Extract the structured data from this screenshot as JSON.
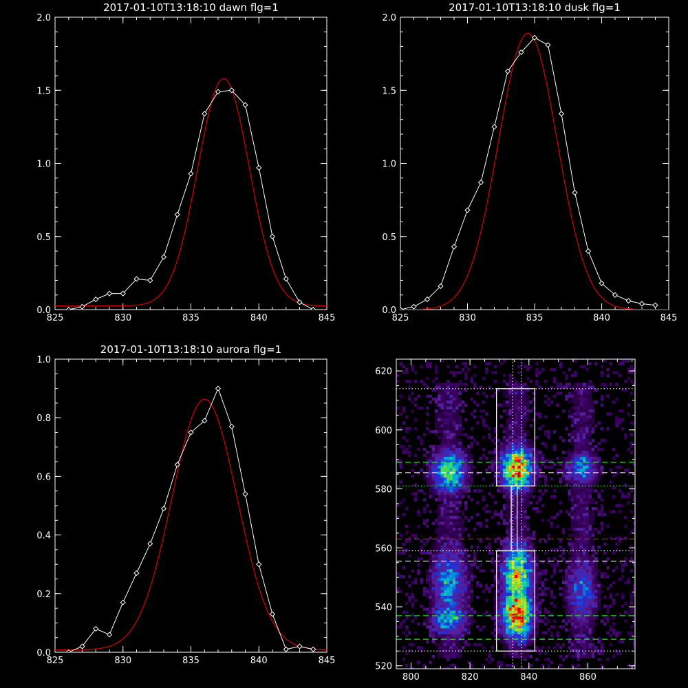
{
  "colors": {
    "background": "#000000",
    "axes": "#ffffff",
    "data_line": "#ffffff",
    "fit_line": "#cc0000",
    "guide_green": "#22dd22",
    "guide_white": "#ffffff",
    "guide_red": "#dd2222"
  },
  "chart_data": [
    {
      "type": "line",
      "title": "2017-01-10T13:18:10 dawn flg=1",
      "xlim": [
        825,
        845
      ],
      "ylim": [
        0,
        2.0
      ],
      "xticks": [
        "825",
        "830",
        "835",
        "840",
        "845"
      ],
      "yticks": [
        "0.0",
        "0.5",
        "1.0",
        "1.5",
        "2.0"
      ],
      "series": [
        {
          "style": "data",
          "x": [
            826,
            827,
            828,
            829,
            830,
            831,
            832,
            833,
            834,
            835,
            836,
            837,
            838,
            839,
            840,
            841,
            842,
            843,
            844
          ],
          "y": [
            0.0,
            0.02,
            0.07,
            0.11,
            0.11,
            0.21,
            0.2,
            0.36,
            0.65,
            0.93,
            1.34,
            1.49,
            1.5,
            1.4,
            0.97,
            0.5,
            0.21,
            0.05,
            0.0
          ]
        },
        {
          "style": "fit",
          "model": "gaussian",
          "amplitude": 1.555,
          "center": 837.4,
          "sigma": 1.9,
          "baseline": 0.025
        }
      ]
    },
    {
      "type": "line",
      "title": "2017-01-10T13:18:10 dusk flg=1",
      "xlim": [
        825,
        845
      ],
      "ylim": [
        0,
        2.0
      ],
      "xticks": [
        "825",
        "830",
        "835",
        "840",
        "845"
      ],
      "yticks": [
        "0.0",
        "0.5",
        "1.0",
        "1.5",
        "2.0"
      ],
      "series": [
        {
          "style": "data",
          "x": [
            825,
            826,
            827,
            828,
            829,
            830,
            831,
            832,
            833,
            834,
            835,
            836,
            837,
            838,
            839,
            840,
            841,
            842,
            843,
            844
          ],
          "y": [
            0.0,
            0.02,
            0.07,
            0.16,
            0.43,
            0.68,
            0.87,
            1.25,
            1.63,
            1.76,
            1.86,
            1.81,
            1.34,
            0.8,
            0.4,
            0.18,
            0.1,
            0.06,
            0.04,
            0.03
          ]
        },
        {
          "style": "fit",
          "model": "gaussian",
          "amplitude": 1.89,
          "center": 834.5,
          "sigma": 2.2,
          "baseline": 0.0
        }
      ]
    },
    {
      "type": "line",
      "title": "2017-01-10T13:18:10 aurora flg=1",
      "xlim": [
        825,
        845
      ],
      "ylim": [
        0,
        1.0
      ],
      "xticks": [
        "825",
        "830",
        "835",
        "840",
        "845"
      ],
      "yticks": [
        "0.0",
        "0.2",
        "0.4",
        "0.6",
        "0.8",
        "1.0"
      ],
      "series": [
        {
          "style": "data",
          "x": [
            826,
            827,
            828,
            829,
            830,
            831,
            832,
            833,
            834,
            835,
            836,
            837,
            838,
            839,
            840,
            841,
            842,
            843,
            844
          ],
          "y": [
            0.0,
            0.02,
            0.08,
            0.06,
            0.17,
            0.27,
            0.37,
            0.49,
            0.64,
            0.75,
            0.79,
            0.9,
            0.77,
            0.54,
            0.3,
            0.13,
            0.01,
            0.02,
            0.01
          ]
        },
        {
          "style": "fit",
          "model": "gaussian",
          "amplitude": 0.855,
          "center": 836.0,
          "sigma": 2.4,
          "baseline": 0.008
        }
      ]
    },
    {
      "type": "heatmap",
      "title": "",
      "xlim": [
        795,
        876
      ],
      "ylim": [
        519,
        624
      ],
      "xticks": [
        "800",
        "820",
        "840",
        "860"
      ],
      "yticks": [
        "520",
        "540",
        "560",
        "580",
        "600",
        "620"
      ],
      "colormap": [
        "#000000",
        "#3a0060",
        "#5a1f9c",
        "#2030d8",
        "#0098e0",
        "#10d0b0",
        "#50e040",
        "#d8e020",
        "#ff8000",
        "#e00000"
      ],
      "columns": [
        {
          "center": 813,
          "width": 4,
          "blobs": [
            {
              "y": 586,
              "height": 5,
              "peak": 0.65
            },
            {
              "y": 536,
              "height": 4,
              "peak": 0.55
            },
            {
              "y": 548,
              "height": 9,
              "peak": 0.45
            }
          ]
        },
        {
          "center": 836,
          "width": 3.5,
          "blobs": [
            {
              "y": 587,
              "height": 5,
              "peak": 1.0
            },
            {
              "y": 538,
              "height": 6,
              "peak": 1.0
            },
            {
              "y": 550,
              "height": 8,
              "peak": 0.75
            }
          ]
        },
        {
          "center": 858,
          "width": 3.5,
          "blobs": [
            {
              "y": 587,
              "height": 4,
              "peak": 0.42
            },
            {
              "y": 545,
              "height": 9,
              "peak": 0.35
            }
          ]
        }
      ],
      "guide_lines_horizontal": [
        {
          "y": 614,
          "color": "white",
          "style": "dotted"
        },
        {
          "y": 589,
          "color": "green",
          "style": "dashed"
        },
        {
          "y": 585.5,
          "color": "white",
          "style": "dashed"
        },
        {
          "y": 581,
          "color": "green",
          "style": "dotted"
        },
        {
          "y": 563,
          "color": "red",
          "style": "dashed"
        },
        {
          "y": 559,
          "color": "white",
          "style": "dotted"
        },
        {
          "y": 555.5,
          "color": "white",
          "style": "dashed"
        },
        {
          "y": 537,
          "color": "green",
          "style": "dashed"
        },
        {
          "y": 529,
          "color": "green",
          "style": "dashed"
        },
        {
          "y": 525,
          "color": "white",
          "style": "dotted"
        }
      ],
      "guide_lines_vertical": [
        {
          "x": 834.5,
          "color": "white",
          "style": "dotted"
        },
        {
          "x": 837.5,
          "color": "white",
          "style": "dotted"
        }
      ],
      "boxes": [
        {
          "x0": 829,
          "x1": 842,
          "y0": 581,
          "y1": 614
        },
        {
          "x0": 829,
          "x1": 842,
          "y0": 525,
          "y1": 559
        },
        {
          "x0": 834,
          "x1": 836,
          "y0": 559,
          "y1": 581
        }
      ]
    }
  ]
}
